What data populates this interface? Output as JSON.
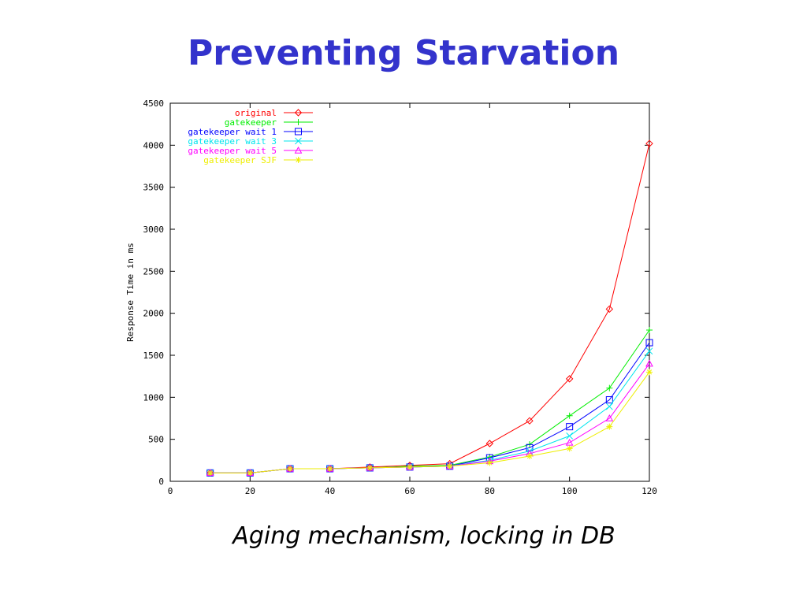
{
  "slide": {
    "title": "Preventing Starvation",
    "caption": "Aging mechanism, locking in DB"
  },
  "chart_data": {
    "type": "line",
    "title": "",
    "xlabel": "",
    "ylabel": "Response Time in ms",
    "xlim": [
      0,
      120
    ],
    "ylim": [
      0,
      4500
    ],
    "xticks": [
      0,
      20,
      40,
      60,
      80,
      100,
      120
    ],
    "yticks": [
      0,
      500,
      1000,
      1500,
      2000,
      2500,
      3000,
      3500,
      4000,
      4500
    ],
    "grid": false,
    "legend_position": "top-left",
    "series": [
      {
        "name": "original",
        "color": "#ff0000",
        "marker": "diamond",
        "x": [
          10,
          20,
          30,
          40,
          50,
          60,
          70,
          80,
          90,
          100,
          110,
          120
        ],
        "y": [
          100,
          100,
          150,
          150,
          170,
          190,
          210,
          450,
          720,
          1220,
          2050,
          4020
        ]
      },
      {
        "name": "gatekeeper",
        "color": "#00ee00",
        "marker": "plus",
        "x": [
          10,
          20,
          30,
          40,
          50,
          60,
          70,
          80,
          90,
          100,
          110,
          120
        ],
        "y": [
          100,
          100,
          150,
          150,
          160,
          180,
          190,
          290,
          440,
          780,
          1110,
          1800
        ]
      },
      {
        "name": "gatekeeper wait 1",
        "color": "#0000ff",
        "marker": "square",
        "x": [
          10,
          20,
          30,
          40,
          50,
          60,
          70,
          80,
          90,
          100,
          110,
          120
        ],
        "y": [
          100,
          100,
          150,
          150,
          160,
          170,
          180,
          280,
          400,
          650,
          970,
          1650
        ]
      },
      {
        "name": "gatekeeper wait 3",
        "color": "#00e5ee",
        "marker": "cross",
        "x": [
          10,
          20,
          30,
          40,
          50,
          60,
          70,
          80,
          90,
          100,
          110,
          120
        ],
        "y": [
          100,
          100,
          150,
          150,
          160,
          170,
          180,
          250,
          360,
          540,
          890,
          1550
        ]
      },
      {
        "name": "gatekeeper wait 5",
        "color": "#ff00ff",
        "marker": "triangle",
        "x": [
          10,
          20,
          30,
          40,
          50,
          60,
          70,
          80,
          90,
          100,
          110,
          120
        ],
        "y": [
          100,
          100,
          150,
          150,
          160,
          170,
          180,
          240,
          330,
          460,
          750,
          1400
        ]
      },
      {
        "name": "gatekeeper SJF",
        "color": "#eeee00",
        "marker": "star",
        "x": [
          10,
          20,
          30,
          40,
          50,
          60,
          70,
          80,
          90,
          100,
          110,
          120
        ],
        "y": [
          100,
          100,
          150,
          150,
          160,
          170,
          180,
          220,
          300,
          390,
          650,
          1300
        ]
      }
    ]
  }
}
